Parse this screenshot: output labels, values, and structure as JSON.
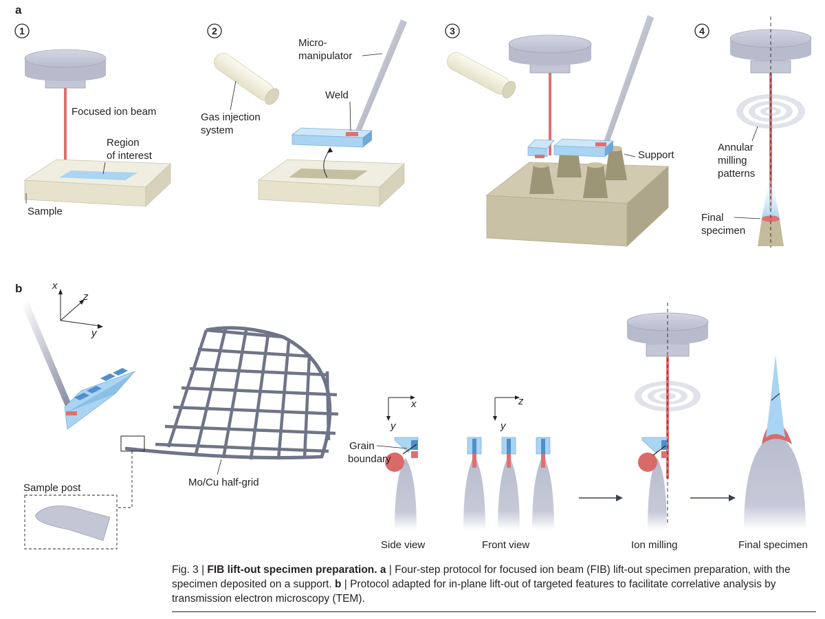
{
  "panels": {
    "a": "a",
    "b": "b"
  },
  "steps": [
    "1",
    "2",
    "3",
    "4"
  ],
  "labels": {
    "focused_ion_beam": "Focused ion beam",
    "region_of_interest_1": "Region",
    "region_of_interest_2": "of interest",
    "sample": "Sample",
    "gas_injection_1": "Gas injection",
    "gas_injection_2": "system",
    "micromanipulator_1": "Micro-",
    "micromanipulator_2": "manipulator",
    "weld": "Weld",
    "support": "Support",
    "annular_1": "Annular",
    "annular_2": "milling",
    "annular_3": "patterns",
    "final_specimen_1": "Final",
    "final_specimen_2": "specimen",
    "axis_x": "x",
    "axis_y": "y",
    "axis_z": "z",
    "half_grid": "Mo/Cu half-grid",
    "sample_post": "Sample post",
    "grain_boundary_1": "Grain",
    "grain_boundary_2": "boundary",
    "side_view": "Side view",
    "front_view": "Front view",
    "ion_milling": "Ion milling",
    "final_specimen": "Final specimen"
  },
  "caption": {
    "fig_label": "Fig. 3 | ",
    "title": "FIB lift-out specimen preparation.",
    "a_tag": "a",
    "a_text": " | Four-step protocol for focused ion beam (FIB) lift-out specimen preparation, with the specimen deposited on a support. ",
    "b_tag": "b",
    "b_text": " | Protocol adapted for in-plane lift-out of targeted features to facilitate correlative analysis by transmission electron microscopy (TEM)."
  },
  "colors": {
    "column": "#c9ccd9",
    "column_dark": "#a9adbf",
    "beam": "#e06f6f",
    "specimen_blue": "#a9d4f2",
    "sample_top": "#f0eee0",
    "sample_side": "#d6d2bc",
    "support": "#c8c1a6",
    "weld": "#e07070",
    "grid": "#6f7487",
    "grain": "#d96a6a"
  }
}
